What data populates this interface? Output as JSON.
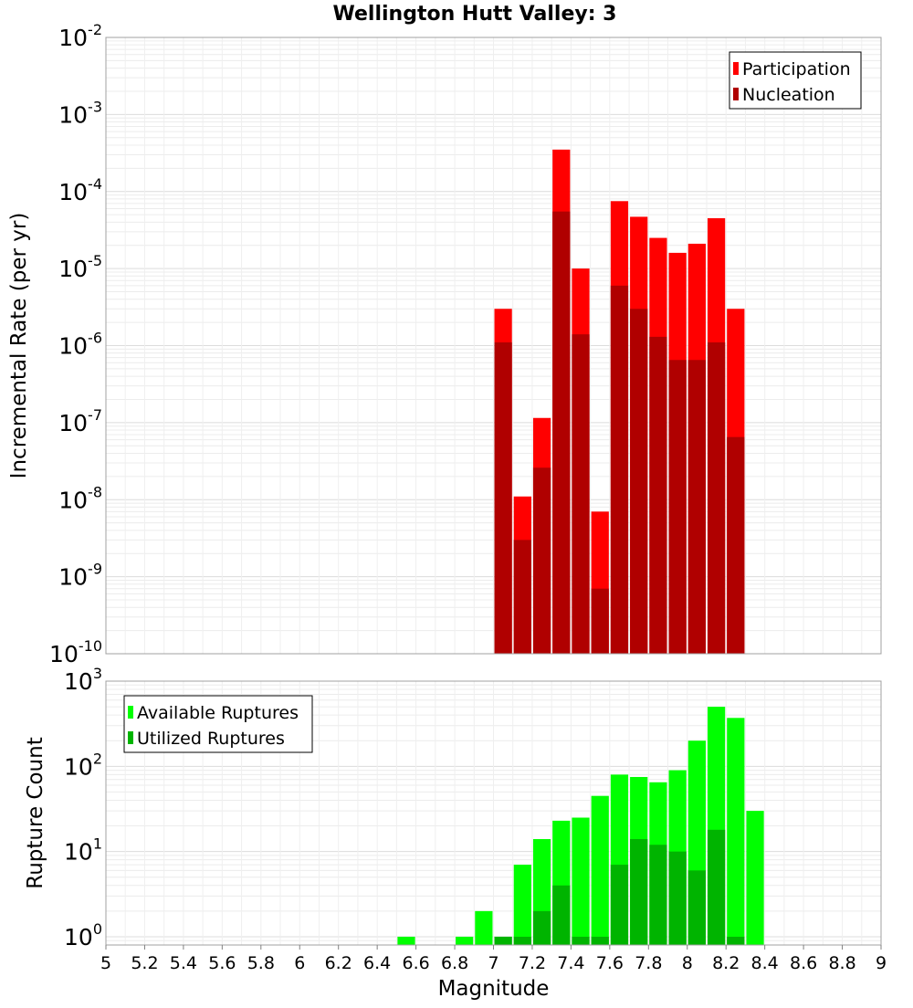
{
  "title": "Wellington Hutt Valley: 3",
  "chart_data": [
    {
      "type": "bar",
      "scale": "log",
      "ylabel": "Incremental Rate (per yr)",
      "ylim": [
        1e-10,
        0.01
      ],
      "y_tick_exponents": [
        -10,
        -9,
        -8,
        -7,
        -6,
        -5,
        -4,
        -3,
        -2
      ],
      "x_bin_width": 0.1,
      "legend": {
        "placement": "top-right",
        "entries": [
          "Participation",
          "Nucleation"
        ]
      },
      "series": [
        {
          "name": "Participation",
          "color": "#ff0000",
          "x": [
            7.05,
            7.15,
            7.25,
            7.35,
            7.45,
            7.55,
            7.65,
            7.75,
            7.85,
            7.95,
            8.05,
            8.15,
            8.25
          ],
          "values": [
            3e-06,
            1.1e-08,
            1.15e-07,
            0.00035,
            1e-05,
            7e-09,
            7.5e-05,
            4.7e-05,
            2.5e-05,
            1.6e-05,
            2.1e-05,
            4.5e-05,
            3e-06
          ]
        },
        {
          "name": "Nucleation",
          "color": "#b00000",
          "x": [
            7.05,
            7.15,
            7.25,
            7.35,
            7.45,
            7.55,
            7.65,
            7.75,
            7.85,
            7.95,
            8.05,
            8.15,
            8.25
          ],
          "values": [
            1.1e-06,
            3e-09,
            2.6e-08,
            5.5e-05,
            1.4e-06,
            7e-10,
            6e-06,
            3e-06,
            1.3e-06,
            6.5e-07,
            6.5e-07,
            1.1e-06,
            6.5e-08
          ]
        }
      ]
    },
    {
      "type": "bar",
      "scale": "log",
      "xlabel": "Magnitude",
      "ylabel": "Rupture Count",
      "ylim": [
        0.8,
        1000
      ],
      "y_tick_exponents": [
        0,
        1,
        2,
        3
      ],
      "x_ticks": [
        "5",
        "5.2",
        "5.4",
        "5.6",
        "5.8",
        "6",
        "6.2",
        "6.4",
        "6.6",
        "6.8",
        "7",
        "7.2",
        "7.4",
        "7.6",
        "7.8",
        "8",
        "8.2",
        "8.4",
        "8.6",
        "8.8",
        "9"
      ],
      "xlim": [
        5,
        9
      ],
      "x_bin_width": 0.1,
      "legend": {
        "placement": "top-left",
        "entries": [
          "Available Ruptures",
          "Utilized Ruptures"
        ]
      },
      "series": [
        {
          "name": "Available Ruptures",
          "color": "#00ff00",
          "x": [
            6.55,
            6.85,
            6.95,
            7.05,
            7.15,
            7.25,
            7.35,
            7.45,
            7.55,
            7.65,
            7.75,
            7.85,
            7.95,
            8.05,
            8.15,
            8.25,
            8.35
          ],
          "values": [
            1,
            1,
            2,
            1,
            7,
            14,
            23,
            25,
            45,
            80,
            75,
            65,
            90,
            200,
            500,
            370,
            30
          ]
        },
        {
          "name": "Utilized Ruptures",
          "color": "#00b400",
          "x": [
            7.05,
            7.15,
            7.25,
            7.35,
            7.45,
            7.55,
            7.65,
            7.75,
            7.85,
            7.95,
            8.05,
            8.15,
            8.25
          ],
          "values": [
            1,
            1,
            2,
            4,
            1,
            1,
            7,
            14,
            12,
            10,
            6,
            18,
            1
          ]
        }
      ]
    }
  ]
}
